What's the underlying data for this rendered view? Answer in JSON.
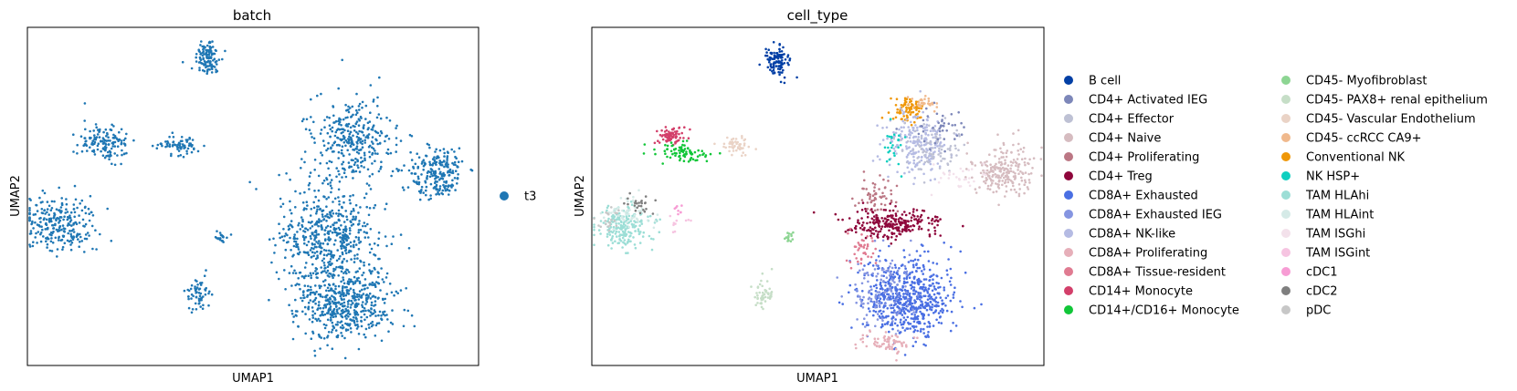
{
  "chart_data": [
    {
      "type": "scatter",
      "title": "batch",
      "xlabel": "UMAP1",
      "ylabel": "UMAP2",
      "xticks": false,
      "yticks": false,
      "legend_position": "right",
      "categories": [
        {
          "label": "t3",
          "color": "#1f77b4"
        }
      ],
      "clusters": [
        {
          "category": "t3",
          "center": [
            0.4,
            0.09
          ],
          "spread": [
            0.025,
            0.05
          ],
          "points": 120
        },
        {
          "category": "t3",
          "center": [
            0.17,
            0.34
          ],
          "spread": [
            0.05,
            0.05
          ],
          "points": 140
        },
        {
          "category": "t3",
          "center": [
            0.34,
            0.35
          ],
          "spread": [
            0.045,
            0.03
          ],
          "points": 70
        },
        {
          "category": "t3",
          "center": [
            0.07,
            0.58
          ],
          "spread": [
            0.07,
            0.07
          ],
          "points": 260
        },
        {
          "category": "t3",
          "center": [
            0.72,
            0.33
          ],
          "spread": [
            0.08,
            0.11
          ],
          "points": 320
        },
        {
          "category": "t3",
          "center": [
            0.91,
            0.43
          ],
          "spread": [
            0.06,
            0.07
          ],
          "points": 220
        },
        {
          "category": "t3",
          "center": [
            0.67,
            0.62
          ],
          "spread": [
            0.1,
            0.14
          ],
          "points": 520
        },
        {
          "category": "t3",
          "center": [
            0.7,
            0.82
          ],
          "spread": [
            0.1,
            0.1
          ],
          "points": 520
        },
        {
          "category": "t3",
          "center": [
            0.38,
            0.79
          ],
          "spread": [
            0.025,
            0.05
          ],
          "points": 60
        },
        {
          "category": "t3",
          "center": [
            0.43,
            0.62
          ],
          "spread": [
            0.015,
            0.015
          ],
          "points": 20
        }
      ]
    },
    {
      "type": "scatter",
      "title": "cell_type",
      "xlabel": "UMAP1",
      "ylabel": "UMAP2",
      "xticks": false,
      "yticks": false,
      "legend_position": "right",
      "categories": [
        {
          "label": "B cell",
          "color": "#023fa5"
        },
        {
          "label": "CD4+ Activated IEG",
          "color": "#7d87b9"
        },
        {
          "label": "CD4+ Effector",
          "color": "#bec1d4"
        },
        {
          "label": "CD4+ Naive",
          "color": "#d6bcc0"
        },
        {
          "label": "CD4+ Proliferating",
          "color": "#bb7784"
        },
        {
          "label": "CD4+ Treg",
          "color": "#8e063b"
        },
        {
          "label": "CD8A+ Exhausted",
          "color": "#4a6fe3"
        },
        {
          "label": "CD8A+ Exhausted IEG",
          "color": "#8595e1"
        },
        {
          "label": "CD8A+ NK-like",
          "color": "#b5bbe3"
        },
        {
          "label": "CD8A+ Proliferating",
          "color": "#e6afb9"
        },
        {
          "label": "CD8A+ Tissue-resident",
          "color": "#e07b91"
        },
        {
          "label": "CD14+ Monocyte",
          "color": "#d33f6a"
        },
        {
          "label": "CD14+/CD16+ Monocyte",
          "color": "#11c638"
        },
        {
          "label": "CD45- Myofibroblast",
          "color": "#8dd593"
        },
        {
          "label": "CD45- PAX8+ renal epithelium",
          "color": "#c6dec7"
        },
        {
          "label": "CD45- Vascular Endothelium",
          "color": "#ead3c6"
        },
        {
          "label": "CD45- ccRCC CA9+",
          "color": "#f0b98d"
        },
        {
          "label": "Conventional NK",
          "color": "#ef9708"
        },
        {
          "label": "NK HSP+",
          "color": "#0fcfc0"
        },
        {
          "label": "TAM HLAhi",
          "color": "#9cded6"
        },
        {
          "label": "TAM HLAint",
          "color": "#d5eae7"
        },
        {
          "label": "TAM ISGhi",
          "color": "#f3e1eb"
        },
        {
          "label": "TAM ISGint",
          "color": "#f6c4e1"
        },
        {
          "label": "cDC1",
          "color": "#f79cd4"
        },
        {
          "label": "cDC2",
          "color": "#7f7f7f"
        },
        {
          "label": "pDC",
          "color": "#c7c7c7"
        }
      ],
      "clusters": [
        {
          "category": "B cell",
          "center": [
            0.41,
            0.1
          ],
          "spread": [
            0.022,
            0.04
          ],
          "points": 110
        },
        {
          "category": "CD14+ Monocyte",
          "center": [
            0.175,
            0.32
          ],
          "spread": [
            0.03,
            0.025
          ],
          "points": 80
        },
        {
          "category": "CD14+/CD16+ Monocyte",
          "center": [
            0.2,
            0.37
          ],
          "spread": [
            0.05,
            0.025
          ],
          "points": 80
        },
        {
          "category": "CD45- Vascular Endothelium",
          "center": [
            0.32,
            0.35
          ],
          "spread": [
            0.035,
            0.025
          ],
          "points": 50
        },
        {
          "category": "TAM HLAhi",
          "center": [
            0.07,
            0.59
          ],
          "spread": [
            0.06,
            0.055
          ],
          "points": 200
        },
        {
          "category": "TAM HLAint",
          "center": [
            0.08,
            0.55
          ],
          "spread": [
            0.05,
            0.04
          ],
          "points": 50
        },
        {
          "category": "cDC2",
          "center": [
            0.1,
            0.52
          ],
          "spread": [
            0.035,
            0.02
          ],
          "points": 25
        },
        {
          "category": "cDC1",
          "center": [
            0.19,
            0.54
          ],
          "spread": [
            0.01,
            0.015
          ],
          "points": 8
        },
        {
          "category": "CD45- Myofibroblast",
          "center": [
            0.435,
            0.62
          ],
          "spread": [
            0.012,
            0.012
          ],
          "points": 15
        },
        {
          "category": "CD45- PAX8+ renal epithelium",
          "center": [
            0.38,
            0.79
          ],
          "spread": [
            0.02,
            0.04
          ],
          "points": 50
        },
        {
          "category": "Conventional NK",
          "center": [
            0.7,
            0.24
          ],
          "spread": [
            0.035,
            0.03
          ],
          "points": 80
        },
        {
          "category": "CD8A+ NK-like",
          "center": [
            0.72,
            0.34
          ],
          "spread": [
            0.06,
            0.08
          ],
          "points": 220
        },
        {
          "category": "CD4+ Effector",
          "center": [
            0.76,
            0.36
          ],
          "spread": [
            0.05,
            0.06
          ],
          "points": 80
        },
        {
          "category": "CD4+ Naive",
          "center": [
            0.91,
            0.43
          ],
          "spread": [
            0.06,
            0.065
          ],
          "points": 220
        },
        {
          "category": "CD4+ Proliferating",
          "center": [
            0.63,
            0.5
          ],
          "spread": [
            0.04,
            0.05
          ],
          "points": 60
        },
        {
          "category": "CD4+ Treg",
          "center": [
            0.67,
            0.58
          ],
          "spread": [
            0.09,
            0.04
          ],
          "points": 240
        },
        {
          "category": "CD8A+ Exhausted",
          "center": [
            0.7,
            0.8
          ],
          "spread": [
            0.09,
            0.1
          ],
          "points": 620
        },
        {
          "category": "CD8A+ Exhausted IEG",
          "center": [
            0.64,
            0.78
          ],
          "spread": [
            0.06,
            0.1
          ],
          "points": 120
        },
        {
          "category": "CD8A+ Proliferating",
          "center": [
            0.65,
            0.93
          ],
          "spread": [
            0.06,
            0.03
          ],
          "points": 70
        },
        {
          "category": "CD8A+ Tissue-resident",
          "center": [
            0.6,
            0.66
          ],
          "spread": [
            0.03,
            0.05
          ],
          "points": 40
        },
        {
          "category": "NK HSP+",
          "center": [
            0.67,
            0.35
          ],
          "spread": [
            0.02,
            0.06
          ],
          "points": 25
        },
        {
          "category": "CD4+ Activated IEG",
          "center": [
            0.76,
            0.3
          ],
          "spread": [
            0.05,
            0.05
          ],
          "points": 40
        },
        {
          "category": "CD45- ccRCC CA9+",
          "center": [
            0.73,
            0.22
          ],
          "spread": [
            0.03,
            0.02
          ],
          "points": 30
        },
        {
          "category": "pDC",
          "center": [
            0.04,
            0.57
          ],
          "spread": [
            0.025,
            0.04
          ],
          "points": 20
        },
        {
          "category": "TAM ISGhi",
          "center": [
            0.82,
            0.44
          ],
          "spread": [
            0.05,
            0.05
          ],
          "points": 30
        },
        {
          "category": "TAM ISGint",
          "center": [
            0.2,
            0.58
          ],
          "spread": [
            0.02,
            0.02
          ],
          "points": 10
        }
      ]
    }
  ]
}
